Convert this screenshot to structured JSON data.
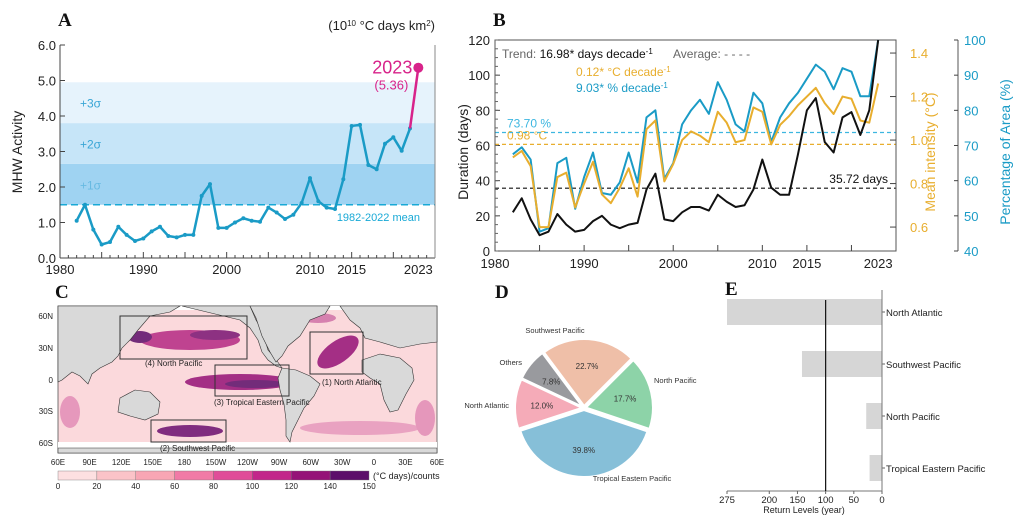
{
  "chart_data": [
    {
      "panel": "A",
      "type": "line",
      "title": "",
      "units_label": "(10^10 °C days km^2)",
      "ylabel": "MHW Activity",
      "xlabel": "",
      "xlim": [
        1980,
        2025
      ],
      "ylim": [
        0,
        6
      ],
      "x_ticks": [
        1980,
        1990,
        2000,
        2010,
        2015,
        2023
      ],
      "y_ticks": [
        "0.0",
        "1.0",
        "2.0",
        "3.0",
        "4.0",
        "5.0",
        "6.0"
      ],
      "x": [
        1982,
        1983,
        1984,
        1985,
        1986,
        1987,
        1988,
        1989,
        1990,
        1991,
        1992,
        1993,
        1994,
        1995,
        1996,
        1997,
        1998,
        1999,
        2000,
        2001,
        2002,
        2003,
        2004,
        2005,
        2006,
        2007,
        2008,
        2009,
        2010,
        2011,
        2012,
        2013,
        2014,
        2015,
        2016,
        2017,
        2018,
        2019,
        2020,
        2021,
        2022,
        2023
      ],
      "values": [
        1.05,
        1.5,
        0.8,
        0.38,
        0.45,
        0.88,
        0.65,
        0.48,
        0.55,
        0.75,
        0.88,
        0.62,
        0.58,
        0.65,
        0.65,
        1.75,
        2.08,
        0.85,
        0.85,
        1.0,
        1.12,
        1.05,
        1.02,
        1.42,
        1.28,
        1.1,
        1.22,
        1.55,
        2.25,
        1.6,
        1.42,
        1.38,
        2.22,
        3.72,
        3.75,
        2.62,
        2.5,
        3.22,
        3.4,
        3.02,
        3.65,
        5.36
      ],
      "mean_line": {
        "value": 1.5,
        "label": "1982-2022 mean"
      },
      "sigma_bands": [
        {
          "label": "+1σ",
          "from": 1.5,
          "to": 2.65
        },
        {
          "label": "+2σ",
          "from": 2.65,
          "to": 3.8
        },
        {
          "label": "+3σ",
          "from": 3.8,
          "to": 4.95
        }
      ],
      "highlight": {
        "year_label": "2023",
        "value_label": "(5.36)",
        "value": 5.36
      },
      "colors": {
        "line": "#1a9bc6",
        "highlight": "#d8238a",
        "band1": "#9fd3f2",
        "band2": "#c6e5f8",
        "band3": "#e6f3fc",
        "mean": "#18a9d6"
      }
    },
    {
      "panel": "B",
      "type": "line",
      "xlim": [
        1980,
        2025
      ],
      "x_ticks": [
        1980,
        1990,
        2000,
        2010,
        2015,
        2023
      ],
      "ylabel_left": "Duration (days)",
      "ylim_left": [
        0,
        120
      ],
      "y_ticks_left": [
        "0",
        "20",
        "40",
        "60",
        "80",
        "100",
        "120"
      ],
      "ylabel_mid": "Mean intensity (°C)",
      "ylim_mid": [
        0.49,
        1.46
      ],
      "y_ticks_mid": [
        "0.6",
        "0.8",
        "1.0",
        "1.2",
        "1.4"
      ],
      "ylabel_right": "Percentage of Area (%)",
      "ylim_right": [
        40,
        100
      ],
      "y_ticks_right": [
        "40",
        "50",
        "60",
        "70",
        "80",
        "90",
        "100"
      ],
      "x": [
        1982,
        1983,
        1984,
        1985,
        1986,
        1987,
        1988,
        1989,
        1990,
        1991,
        1992,
        1993,
        1994,
        1995,
        1996,
        1997,
        1998,
        1999,
        2000,
        2001,
        2002,
        2003,
        2004,
        2005,
        2006,
        2007,
        2008,
        2009,
        2010,
        2011,
        2012,
        2013,
        2014,
        2015,
        2016,
        2017,
        2018,
        2019,
        2020,
        2021,
        2022,
        2023
      ],
      "series": [
        {
          "name": "Duration (days)",
          "axis": "left",
          "color": "#111111",
          "values": [
            22,
            30,
            18,
            9,
            11,
            21,
            15,
            11,
            12,
            17,
            20,
            15,
            13,
            15,
            16,
            35,
            44,
            18,
            17,
            22,
            25,
            25,
            23,
            32,
            28,
            25,
            26,
            35,
            52,
            36,
            32,
            32,
            55,
            80,
            87,
            62,
            56,
            76,
            79,
            66,
            80,
            120
          ]
        },
        {
          "name": "Mean intensity (°C)",
          "axis": "mid",
          "color": "#e8ae2e",
          "values": [
            0.92,
            0.95,
            0.88,
            0.6,
            0.6,
            0.83,
            0.85,
            0.69,
            0.8,
            0.9,
            0.75,
            0.71,
            0.78,
            0.87,
            0.74,
            1.05,
            1.09,
            0.81,
            0.89,
            1.0,
            1.04,
            1.02,
            0.99,
            1.13,
            1.08,
            0.99,
            1.0,
            1.15,
            1.13,
            0.98,
            1.07,
            1.11,
            1.16,
            1.2,
            1.24,
            1.17,
            1.12,
            1.2,
            1.19,
            1.09,
            1.08,
            1.26
          ]
        },
        {
          "name": "Percentage of Area (%)",
          "axis": "right",
          "color": "#1a9bc6",
          "values": [
            67.5,
            69.5,
            66,
            45.5,
            46.5,
            65,
            66.5,
            52,
            61,
            68,
            56.5,
            56,
            59.5,
            68,
            59.5,
            78,
            80,
            60.5,
            65,
            76,
            80,
            83,
            79,
            88,
            83,
            76,
            74,
            85,
            82,
            71,
            78,
            82,
            85,
            89,
            93,
            91,
            86,
            92,
            91,
            84,
            84,
            100
          ]
        }
      ],
      "averages": [
        {
          "label": "35.72 days",
          "axis": "left",
          "value": 35.72,
          "color": "#111111"
        },
        {
          "label": "0.98 °C",
          "axis": "mid",
          "value": 0.98,
          "color": "#e8ae2e"
        },
        {
          "label": "73.70 %",
          "axis": "right",
          "value": 73.7,
          "color": "#3cb6e0"
        }
      ],
      "trend_texts": [
        {
          "prefix": "Trend: ",
          "text": "16.98* days decade",
          "sup": "-1",
          "color": "#111111"
        },
        {
          "prefix": "",
          "text": "0.12* °C decade",
          "sup": "-1",
          "color": "#e8ae2e"
        },
        {
          "prefix": "",
          "text": "9.03* % decade",
          "sup": "-1",
          "color": "#1a9bc6"
        }
      ],
      "average_legend": "Average: - - - -"
    },
    {
      "panel": "C",
      "type": "heatmap",
      "description": "Global map of MHW activity",
      "x_ticks": [
        "60E",
        "90E",
        "120E",
        "150E",
        "180",
        "150W",
        "120W",
        "90W",
        "60W",
        "30W",
        "0",
        "30E",
        "60E"
      ],
      "y_ticks": [
        "60N",
        "30N",
        "0",
        "30S",
        "60S"
      ],
      "regions": [
        {
          "label": "(1) North Atlantic"
        },
        {
          "label": "(2) Southwest Pacific"
        },
        {
          "label": "(3) Tropical Eastern Pacific"
        },
        {
          "label": "(4) North Pacific"
        }
      ],
      "colorbar": {
        "ticks": [
          "0",
          "20",
          "40",
          "60",
          "80",
          "100",
          "120",
          "140",
          "150"
        ],
        "unit_label": "(°C days)/counts",
        "colors": [
          "#fde0e1",
          "#fbc3c8",
          "#f8a6b4",
          "#f17aa6",
          "#e04d98",
          "#c2268a",
          "#951277",
          "#5c0f6a"
        ]
      },
      "land_color": "#d9d9d9"
    },
    {
      "panel": "D",
      "type": "pie",
      "slices": [
        {
          "label": "Southwest Pacific",
          "value": 22.7,
          "pct": "22.7%",
          "color": "#efbfa8"
        },
        {
          "label": "North Pacific",
          "value": 17.7,
          "pct": "17.7%",
          "color": "#8dd3a8"
        },
        {
          "label": "Tropical Eastern Pacific",
          "value": 39.8,
          "pct": "39.8%",
          "color": "#86bfd8"
        },
        {
          "label": "North Atlantic",
          "value": 12.0,
          "pct": "12.0%",
          "color": "#f5abb8"
        },
        {
          "label": "Others",
          "value": 7.8,
          "pct": "7.8%",
          "color": "#999a9e"
        }
      ]
    },
    {
      "panel": "E",
      "type": "bar",
      "orientation": "horizontal-reversed",
      "categories": [
        "North Atlantic",
        "Southwest Pacific",
        "North Pacific",
        "Tropical Eastern Pacific"
      ],
      "values": [
        278,
        142,
        28,
        22
      ],
      "xlabel": "Return Levels (year)",
      "xlim": [
        275,
        0
      ],
      "x_ticks": [
        "275",
        "200",
        "150",
        "100",
        "50",
        "0"
      ],
      "reference_line": 100,
      "bar_color": "#d6d6d6"
    }
  ],
  "panel_letters": {
    "a": "A",
    "b": "B",
    "c": "C",
    "d": "D",
    "e": "E"
  }
}
